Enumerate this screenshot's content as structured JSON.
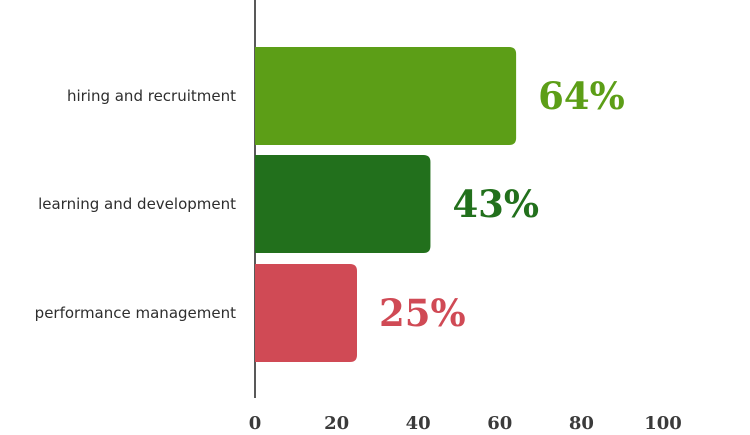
{
  "chart_data": {
    "type": "bar",
    "orientation": "horizontal",
    "categories": [
      "hiring and recruitment",
      "learning and development",
      "performance management"
    ],
    "values": [
      64,
      43,
      25
    ],
    "value_labels": [
      "64%",
      "43%",
      "25%"
    ],
    "colors": [
      "#5c9e17",
      "#22701c",
      "#d04a55"
    ],
    "xlim": [
      0,
      100
    ],
    "xticks": [
      0,
      20,
      40,
      60,
      80,
      100
    ],
    "xtick_labels": [
      "0",
      "20",
      "40",
      "60",
      "80",
      "100"
    ],
    "title": "",
    "xlabel": "",
    "ylabel": "",
    "grid": false,
    "legend": "none"
  }
}
